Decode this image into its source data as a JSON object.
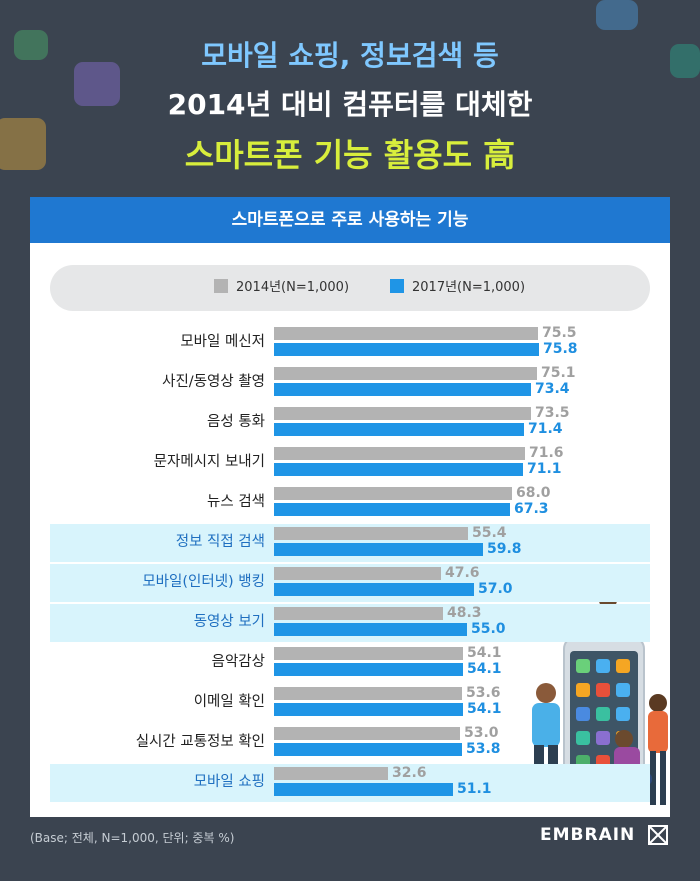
{
  "title": {
    "line1": "모바일 쇼핑, 정보검색 등",
    "line2": "2014년 대비 컴퓨터를 대체한",
    "line3": "스마트폰 기능 활용도 高"
  },
  "card_title": "스마트폰으로 주로 사용하는 기능",
  "footer": {
    "note": "(Base; 전체, N=1,000, 단위; 중복 %)",
    "brand": "EMBRAIN"
  },
  "colors": {
    "background": "#3b4450",
    "series_2014": "#b3b3b3",
    "series_2017": "#1f95e6",
    "highlight_row": "#d8f4fc",
    "title_blue": "#7fc8ff",
    "title_yellow": "#d8ee3c"
  },
  "chart_data": {
    "type": "bar",
    "orientation": "horizontal",
    "categories": [
      "모바일 메신저",
      "사진/동영상 촬영",
      "음성 통화",
      "문자메시지 보내기",
      "뉴스 검색",
      "정보 직접 검색",
      "모바일(인터넷) 뱅킹",
      "동영상 보기",
      "음악감상",
      "이메일 확인",
      "실시간 교통정보 확인",
      "모바일 쇼핑"
    ],
    "highlighted": [
      "정보 직접 검색",
      "모바일(인터넷) 뱅킹",
      "동영상 보기",
      "모바일 쇼핑"
    ],
    "series": [
      {
        "name": "2014년(N=1,000)",
        "values": [
          75.5,
          75.1,
          73.5,
          71.6,
          68.0,
          55.4,
          47.6,
          48.3,
          54.1,
          53.6,
          53.0,
          32.6
        ]
      },
      {
        "name": "2017년(N=1,000)",
        "values": [
          75.8,
          73.4,
          71.4,
          71.1,
          67.3,
          59.8,
          57.0,
          55.0,
          54.1,
          54.1,
          53.8,
          51.1
        ]
      }
    ],
    "value_labels": [
      [
        "75.5",
        "75.1",
        "73.5",
        "71.6",
        "68.0",
        "55.4",
        "47.6",
        "48.3",
        "54.1",
        "53.6",
        "53.0",
        "32.6"
      ],
      [
        "75.8",
        "73.4",
        "71.4",
        "71.1",
        "67.3",
        "59.8",
        "57.0",
        "55.0",
        "54.1",
        "54.1",
        "53.8",
        "51.1"
      ]
    ],
    "legend_position": "top",
    "xlim": [
      0,
      100
    ],
    "grid": false
  }
}
